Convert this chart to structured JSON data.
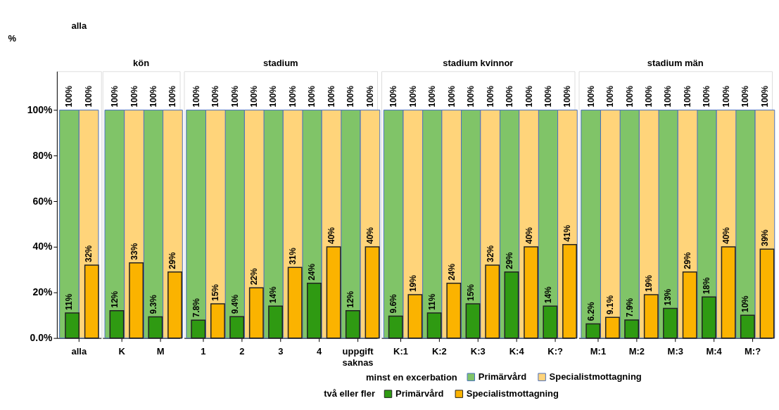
{
  "chart_data": [
    {
      "type": "bar",
      "title": "alla",
      "ylabel": "%",
      "categories": [
        "alla"
      ],
      "ylim": [
        0,
        117
      ],
      "yticks": [
        {
          "value": 0,
          "label": "0.0%"
        },
        {
          "value": 20,
          "label": "20%"
        },
        {
          "value": 40,
          "label": "40%"
        },
        {
          "value": 60,
          "label": "60%"
        },
        {
          "value": 80,
          "label": "80%"
        },
        {
          "value": 100,
          "label": "100%"
        }
      ],
      "legend": "bottom",
      "legend_title": "minst en excerbation",
      "annotations": [
        "två eller fler"
      ],
      "series": [
        {
          "name": "Primärvård",
          "color": "#80c468",
          "values": [
            100
          ],
          "value_labels": [
            "100%"
          ]
        },
        {
          "name": "Specialistmottagning",
          "color": "#ffd47a",
          "values": [
            100
          ],
          "value_labels": [
            "100%"
          ]
        },
        {
          "name": "Primärvård",
          "color": "#2f9a12",
          "values": [
            11
          ],
          "value_labels": [
            "11%"
          ]
        },
        {
          "name": "Specialistmottagning",
          "color": "#fbb300",
          "values": [
            32
          ],
          "value_labels": [
            "32%"
          ]
        }
      ]
    },
    {
      "type": "bar",
      "title": "kön",
      "categories": [
        "K",
        "M"
      ],
      "ylim": [
        0,
        117
      ],
      "tick_labels": "x",
      "series": [
        {
          "color": "#80c468",
          "values": [
            100,
            100
          ],
          "value_labels": [
            "100%",
            "100%"
          ]
        },
        {
          "color": "#ffd47a",
          "values": [
            100,
            100
          ],
          "value_labels": [
            "100%",
            "100%"
          ]
        },
        {
          "color": "#2f9a12",
          "values": [
            12,
            9.3
          ],
          "value_labels": [
            "12%",
            "9.3%"
          ]
        },
        {
          "color": "#fbb300",
          "values": [
            33,
            29
          ],
          "value_labels": [
            "33%",
            "29%"
          ]
        }
      ]
    },
    {
      "type": "bar",
      "title": "stadium",
      "categories": [
        "1",
        "2",
        "3",
        "4",
        "uppgift saknas"
      ],
      "ylim": [
        0,
        117
      ],
      "tick_labels": "x",
      "series": [
        {
          "color": "#80c468",
          "values": [
            100,
            100,
            100,
            100,
            100
          ],
          "value_labels": [
            "100%",
            "100%",
            "100%",
            "100%",
            "100%"
          ]
        },
        {
          "color": "#ffd47a",
          "values": [
            100,
            100,
            100,
            100,
            100
          ],
          "value_labels": [
            "100%",
            "100%",
            "100%",
            "100%",
            "100%"
          ]
        },
        {
          "color": "#2f9a12",
          "values": [
            7.8,
            9.4,
            14,
            24,
            12
          ],
          "value_labels": [
            "7.8%",
            "9.4%",
            "14%",
            "24%",
            "12%"
          ]
        },
        {
          "color": "#fbb300",
          "values": [
            15,
            22,
            31,
            40,
            40
          ],
          "value_labels": [
            "15%",
            "22%",
            "31%",
            "40%",
            "40%"
          ]
        }
      ]
    },
    {
      "type": "bar",
      "title": "stadium kvinnor",
      "categories": [
        "K:1",
        "K:2",
        "K:3",
        "K:4",
        "K:?"
      ],
      "ylim": [
        0,
        117
      ],
      "tick_labels": "x",
      "series": [
        {
          "color": "#80c468",
          "values": [
            100,
            100,
            100,
            100,
            100
          ],
          "value_labels": [
            "100%",
            "100%",
            "100%",
            "100%",
            "100%"
          ]
        },
        {
          "color": "#ffd47a",
          "values": [
            100,
            100,
            100,
            100,
            100
          ],
          "value_labels": [
            "100%",
            "100%",
            "100%",
            "100%",
            "100%"
          ]
        },
        {
          "color": "#2f9a12",
          "values": [
            9.6,
            11,
            15,
            29,
            14
          ],
          "value_labels": [
            "9.6%",
            "11%",
            "15%",
            "29%",
            "14%"
          ]
        },
        {
          "color": "#fbb300",
          "values": [
            19,
            24,
            32,
            40,
            41
          ],
          "value_labels": [
            "19%",
            "24%",
            "32%",
            "40%",
            "41%"
          ]
        }
      ]
    },
    {
      "type": "bar",
      "title": "stadium män",
      "categories": [
        "M:1",
        "M:2",
        "M:3",
        "M:4",
        "M:?"
      ],
      "ylim": [
        0,
        117
      ],
      "tick_labels": "x",
      "series": [
        {
          "color": "#80c468",
          "values": [
            100,
            100,
            100,
            100,
            100
          ],
          "value_labels": [
            "100%",
            "100%",
            "100%",
            "100%",
            "100%"
          ]
        },
        {
          "color": "#ffd47a",
          "values": [
            100,
            100,
            100,
            100,
            100
          ],
          "value_labels": [
            "100%",
            "100%",
            "100%",
            "100%",
            "100%"
          ]
        },
        {
          "color": "#2f9a12",
          "values": [
            6.2,
            7.9,
            13,
            18,
            10
          ],
          "value_labels": [
            "6.2%",
            "7.9%",
            "13%",
            "18%",
            "10%"
          ]
        },
        {
          "color": "#fbb300",
          "values": [
            9.1,
            19,
            29,
            40,
            39
          ],
          "value_labels": [
            "9.1%",
            "19%",
            "29%",
            "40%",
            "39%"
          ]
        }
      ]
    }
  ]
}
